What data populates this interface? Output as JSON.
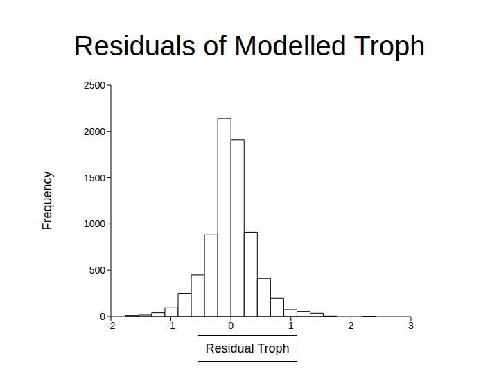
{
  "chart_data": {
    "type": "histogram",
    "title": "Residuals of Modelled Troph",
    "x_label": "Residual Troph",
    "y_label": "Frequency",
    "bins": [
      -1.76,
      -1.54,
      -1.32,
      -1.1,
      -0.88,
      -0.66,
      -0.44,
      -0.22,
      0,
      0.22,
      0.44,
      0.66,
      0.88,
      1.1,
      1.32,
      1.54,
      1.76,
      1.98,
      2.2,
      2.42
    ],
    "counts": [
      10,
      15,
      40,
      95,
      250,
      450,
      881,
      2140,
      1910,
      910,
      410,
      200,
      75,
      55,
      35,
      5,
      0,
      0,
      3
    ],
    "xlim": [
      -2,
      3
    ],
    "ylim": [
      0,
      2500
    ],
    "xticks": [
      -2,
      -1,
      0,
      1,
      2,
      3
    ],
    "yticks": [
      0,
      500,
      1000,
      1500,
      2000,
      2500
    ],
    "color": "#ffffff"
  }
}
